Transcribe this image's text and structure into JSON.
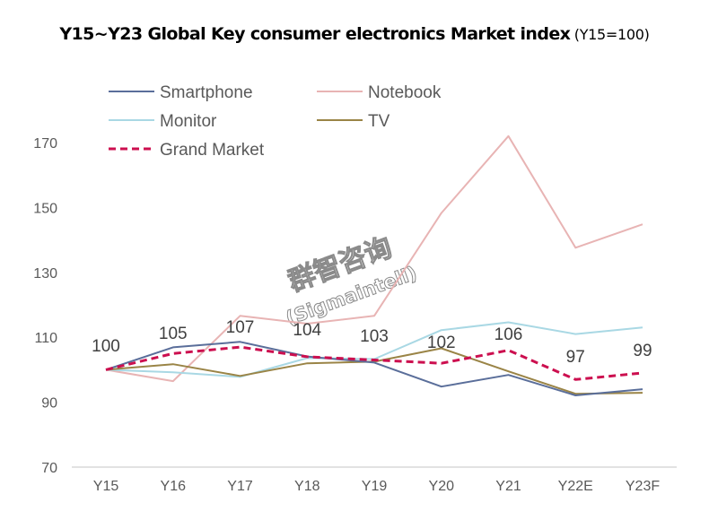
{
  "chart_data": {
    "type": "line",
    "title": "Y15~Y23 Global Key consumer electronics Market index",
    "subtitle": "(Y15=100)",
    "xlabel": "",
    "ylabel": "",
    "categories": [
      "Y15",
      "Y16",
      "Y17",
      "Y18",
      "Y19",
      "Y20",
      "Y21",
      "Y22E",
      "Y23F"
    ],
    "ylim": [
      70,
      180
    ],
    "yticks": [
      70,
      90,
      110,
      130,
      150,
      170
    ],
    "grid": false,
    "legend_position": "top-left",
    "series": [
      {
        "name": "Smartphone",
        "color": "#5a6e9a",
        "dash": false,
        "values": [
          100,
          106.9,
          108.6,
          104.1,
          102.2,
          94.8,
          98.4,
          92.1,
          94.0
        ]
      },
      {
        "name": "Notebook",
        "color": "#e8b4b4",
        "dash": false,
        "values": [
          100,
          96.5,
          116.6,
          114.2,
          116.6,
          148.3,
          172.0,
          137.6,
          144.8
        ]
      },
      {
        "name": "Monitor",
        "color": "#a9d8e4",
        "dash": false,
        "values": [
          100,
          99.2,
          97.8,
          103.6,
          103.3,
          112.2,
          114.6,
          111.0,
          113.0
        ]
      },
      {
        "name": "TV",
        "color": "#9a8446",
        "dash": false,
        "values": [
          100,
          101.7,
          98.1,
          102.0,
          102.5,
          106.6,
          99.5,
          92.6,
          92.9
        ]
      },
      {
        "name": "Grand Market",
        "color": "#cc0f4f",
        "dash": true,
        "values": [
          100,
          105,
          107,
          104,
          103,
          102,
          106,
          97,
          99
        ]
      }
    ],
    "data_labels": {
      "series": "Grand Market",
      "labels": [
        "100",
        "105",
        "107",
        "104",
        "103",
        "102",
        "106",
        "97",
        "99"
      ]
    },
    "annotations": {
      "watermark_line1": "群智咨询",
      "watermark_line2": "(Sigmaintell)"
    }
  }
}
